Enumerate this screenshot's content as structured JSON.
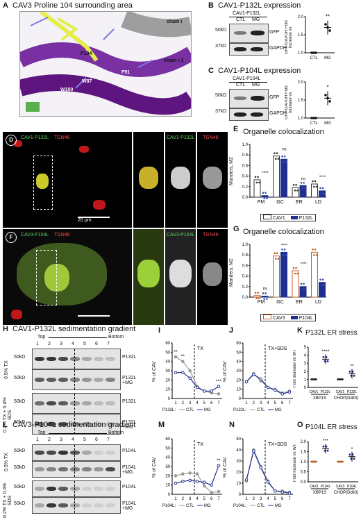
{
  "panelA": {
    "letter": "A",
    "title": "CAV3 Proline 104 surrounding area",
    "labels": [
      "chain i",
      "P104",
      "chain i-1",
      "F91",
      "W87",
      "W100"
    ]
  },
  "panelB": {
    "letter": "B",
    "title": "CAV1-P132L expression",
    "construct": "CAV1-P132L",
    "lanes": [
      "CTL",
      "MG"
    ],
    "mw": [
      "50kD",
      "37kD"
    ],
    "bands": [
      "GFP",
      "GAPDH"
    ],
    "ylabel": "GFP/GAPDH Fold increase vs",
    "sig": "**"
  },
  "panelC": {
    "letter": "C",
    "title": "CAV1-P104L expression",
    "construct": "CAV1-P104L",
    "lanes": [
      "CTL",
      "MG"
    ],
    "mw": [
      "50kD",
      "37kD"
    ],
    "bands": [
      "GFP",
      "GAPDH"
    ],
    "ylabel": "GFP/GAPDH Fold increase vs",
    "sig": "*"
  },
  "panelD": {
    "letter": "D",
    "ch1": "CAV1-P132L",
    "ch2": "TGN46",
    "scale": "20 µm"
  },
  "panelE": {
    "letter": "E",
    "title": "Organelle colocalization",
    "ylabel": "Manders, M2",
    "legend": [
      "CAV1",
      "P132L"
    ],
    "sig": [
      "****",
      "ns",
      "ns",
      "****"
    ]
  },
  "panelF": {
    "letter": "F",
    "ch1": "CAV3-P104L",
    "ch2": "TGN46"
  },
  "panelG": {
    "letter": "G",
    "title": "Organelle colocalization",
    "ylabel": "Manders, M2",
    "legend": [
      "CAV3",
      "P104L"
    ],
    "sig": [
      "ns",
      "****",
      "****"
    ]
  },
  "panelH": {
    "letter": "H",
    "title": "CAV1-P132L sedimentation gradient",
    "top": "Top",
    "bottom": "Bottom",
    "fractions": [
      "1",
      "2",
      "3",
      "4",
      "5",
      "6",
      "7"
    ],
    "mw": "50kD",
    "cond1": "0.5% TX",
    "cond2": "0.2% TX + 0.4% SDS",
    "rows": [
      "P132L",
      "P132L +MG",
      "P132L",
      "P132L +MG"
    ]
  },
  "panelI": {
    "letter": "I",
    "annot": "TX",
    "ylabel": "% of CAV",
    "xprefix": "P132L:",
    "legend": [
      "CTL",
      "MG"
    ],
    "sig": [
      "**",
      "**",
      "***"
    ]
  },
  "panelJ": {
    "letter": "J",
    "annot": "TX+SDS",
    "ylabel": "% of CAV",
    "xprefix": "P132L:",
    "legend": [
      "CTL",
      "MG"
    ]
  },
  "panelK": {
    "letter": "K",
    "title": "P132L ER stress",
    "ylabel": "Fold increase vs WT",
    "groups": [
      "CAV1",
      "P132L",
      "CAV1",
      "P132L"
    ],
    "genes": [
      "XBP1S",
      "CHOP(Ddit3)"
    ],
    "sig": [
      "****",
      "**"
    ]
  },
  "panelL": {
    "letter": "L",
    "title": "CAV3-P104L sedimentation gradient",
    "top": "Top",
    "bottom": "Bottom",
    "fractions": [
      "1",
      "2",
      "3",
      "4",
      "5",
      "6",
      "7"
    ],
    "mw": "50kD",
    "cond1": "0.5% TX",
    "cond2": "0.2% TX + 0.4% SDS",
    "rows": [
      "P104L",
      "P104L +MG",
      "P104L",
      "P104L +MG"
    ]
  },
  "panelM": {
    "letter": "M",
    "annot": "TX",
    "ylabel": "% of CAV",
    "xprefix": "P104L:",
    "legend": [
      "CTL",
      "MG"
    ],
    "sig": [
      "**"
    ]
  },
  "panelN": {
    "letter": "N",
    "annot": "TX+SDS",
    "ylabel": "% of CAV",
    "xprefix": "P104L:",
    "legend": [
      "CTL",
      "MG"
    ]
  },
  "panelO": {
    "letter": "O",
    "title": "P104L ER stress",
    "ylabel": "Fold increase vs WT",
    "groups": [
      "CAV3",
      "P104L",
      "CAV3",
      "P104L"
    ],
    "genes": [
      "XBP1S",
      "CHOP(Ddit3)"
    ],
    "sig": [
      "***",
      "*"
    ]
  },
  "chart_data": [
    {
      "panel": "B",
      "type": "scatter",
      "categories": [
        "CTL",
        "MG"
      ],
      "ylim": [
        1.0,
        2.0
      ],
      "yticks": [
        "1.0",
        "1.5",
        "2.0"
      ],
      "values": [
        1.0,
        1.7
      ]
    },
    {
      "panel": "C",
      "type": "scatter",
      "categories": [
        "CTL",
        "MG"
      ],
      "ylim": [
        1.0,
        2.0
      ],
      "yticks": [
        "1.0",
        "1.5",
        "2.0"
      ],
      "values": [
        1.0,
        1.55
      ]
    },
    {
      "panel": "E",
      "type": "bar",
      "categories": [
        "PM",
        "GC",
        "ER",
        "LD"
      ],
      "ylim": [
        0,
        1.0
      ],
      "yticks": [
        "0.0",
        "0.2",
        "0.4",
        "0.6",
        "0.8",
        "1.0"
      ],
      "series": [
        {
          "name": "CAV1",
          "values": [
            0.33,
            0.78,
            0.18,
            0.25
          ]
        },
        {
          "name": "P132L",
          "values": [
            0.03,
            0.72,
            0.22,
            0.12
          ]
        }
      ]
    },
    {
      "panel": "G",
      "type": "bar",
      "categories": [
        "PM",
        "GC",
        "ER",
        "LD"
      ],
      "ylim": [
        0,
        1.0
      ],
      "yticks": [
        "0.0",
        "0.2",
        "0.4",
        "0.6",
        "0.8",
        "1.0"
      ],
      "series": [
        {
          "name": "CAV3",
          "values": [
            0.03,
            0.78,
            0.5,
            0.85
          ]
        },
        {
          "name": "P104L",
          "values": [
            0.02,
            0.85,
            0.2,
            0.28
          ]
        }
      ]
    },
    {
      "panel": "I",
      "type": "line",
      "x": [
        "1",
        "2",
        "3",
        "4",
        "5",
        "6",
        "7"
      ],
      "ylim": [
        0,
        60
      ],
      "yticks": [
        "0",
        "10",
        "20",
        "30",
        "40",
        "50",
        "60"
      ],
      "series": [
        {
          "name": "CTL",
          "values": [
            45,
            40,
            30,
            13,
            8,
            6,
            5
          ]
        },
        {
          "name": "MG",
          "values": [
            28,
            28,
            22,
            12,
            8,
            8,
            13
          ]
        }
      ]
    },
    {
      "panel": "J",
      "type": "line",
      "x": [
        "1",
        "2",
        "3",
        "4",
        "5",
        "6",
        "7"
      ],
      "ylim": [
        0,
        60
      ],
      "yticks": [
        "0",
        "10",
        "20",
        "30",
        "40",
        "50",
        "60"
      ],
      "series": [
        {
          "name": "CTL",
          "values": [
            18,
            27,
            19,
            12,
            10,
            6,
            8
          ]
        },
        {
          "name": "MG",
          "values": [
            18,
            26,
            21,
            12,
            9,
            5,
            7
          ]
        }
      ]
    },
    {
      "panel": "K",
      "type": "scatter",
      "categories": [
        "XBP1S CAV1",
        "XBP1S P132L",
        "CHOP CAV1",
        "CHOP P132L"
      ],
      "ylim": [
        0,
        5
      ],
      "yticks": [
        "0",
        "1",
        "2",
        "3",
        "4",
        "5"
      ],
      "values": [
        1,
        3.5,
        1,
        1.7
      ]
    },
    {
      "panel": "M",
      "type": "line",
      "x": [
        "1",
        "2",
        "3",
        "4",
        "5",
        "6",
        "7"
      ],
      "ylim": [
        0,
        60
      ],
      "yticks": [
        "0",
        "10",
        "20",
        "30",
        "40",
        "50",
        "60"
      ],
      "series": [
        {
          "name": "CTL",
          "values": [
            20,
            22,
            23,
            22,
            9,
            2,
            3
          ]
        },
        {
          "name": "MG",
          "values": [
            12,
            14,
            15,
            14,
            13,
            10,
            31
          ]
        }
      ]
    },
    {
      "panel": "N",
      "type": "line",
      "x": [
        "1",
        "2",
        "3",
        "4",
        "5",
        "6",
        "7"
      ],
      "ylim": [
        0,
        50
      ],
      "yticks": [
        "0",
        "10",
        "20",
        "30",
        "40",
        "50"
      ],
      "series": [
        {
          "name": "CTL",
          "values": [
            12,
            40,
            25,
            12,
            3,
            3,
            2
          ]
        },
        {
          "name": "MG",
          "values": [
            13,
            39,
            24,
            11,
            3,
            2,
            1
          ]
        }
      ]
    },
    {
      "panel": "O",
      "type": "scatter",
      "categories": [
        "XBP1S CAV3",
        "XBP1S P104L",
        "CHOP CAV3",
        "CHOP P104L"
      ],
      "ylim": [
        0,
        2.0
      ],
      "yticks": [
        "0.0",
        "0.5",
        "1.0",
        "1.5",
        "2.0"
      ],
      "values": [
        1,
        1.65,
        1,
        1.25
      ]
    }
  ]
}
